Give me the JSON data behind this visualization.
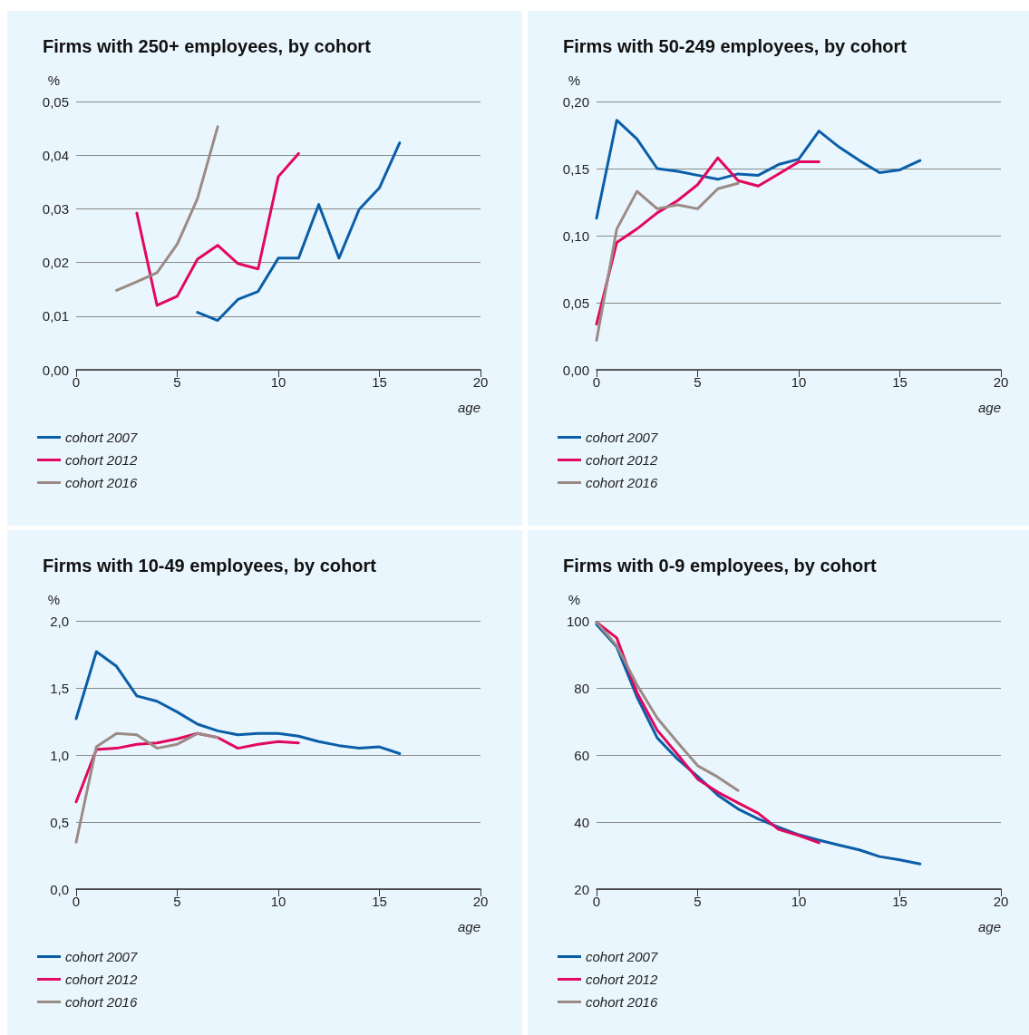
{
  "chart_data": [
    {
      "type": "line",
      "title": "Firms with 250+ employees, by cohort",
      "xlabel": "age",
      "ylabel": "%",
      "xlim": [
        0,
        20
      ],
      "xticks": [
        0,
        5,
        10,
        15,
        20
      ],
      "ylim": [
        0,
        0.05
      ],
      "yticks": [
        {
          "value": 0,
          "label": "0,00"
        },
        {
          "value": 0.01,
          "label": "0,01"
        },
        {
          "value": 0.02,
          "label": "0,02"
        },
        {
          "value": 0.03,
          "label": "0,03"
        },
        {
          "value": 0.04,
          "label": "0,04"
        },
        {
          "value": 0.05,
          "label": "0,05"
        }
      ],
      "grid": "y",
      "legend": "bottom left",
      "marker": "none",
      "line_style": "solid",
      "series": [
        {
          "name": "cohort 2007",
          "color": "#0a5ea8",
          "x": [
            6,
            7,
            8,
            9,
            10,
            11,
            12,
            13,
            14,
            15,
            16
          ],
          "values": [
            0.0107,
            0.0092,
            0.0131,
            0.0146,
            0.0208,
            0.0208,
            0.0308,
            0.0208,
            0.0299,
            0.0339,
            0.0423
          ]
        },
        {
          "name": "cohort 2012",
          "color": "#e2075f",
          "x": [
            3,
            4,
            5,
            6,
            7,
            8,
            9,
            10,
            11
          ],
          "values": [
            0.0292,
            0.012,
            0.0137,
            0.0206,
            0.0232,
            0.0198,
            0.0188,
            0.036,
            0.0403
          ]
        },
        {
          "name": "cohort 2016",
          "color": "#9b8b86",
          "x": [
            2,
            3,
            4,
            5,
            6,
            7
          ],
          "values": [
            0.0148,
            0.0164,
            0.0181,
            0.0234,
            0.0319,
            0.0453
          ]
        }
      ]
    },
    {
      "type": "line",
      "title": "Firms with 50-249 employees, by cohort",
      "xlabel": "age",
      "ylabel": "%",
      "xlim": [
        0,
        20
      ],
      "xticks": [
        0,
        5,
        10,
        15,
        20
      ],
      "ylim": [
        0,
        0.2
      ],
      "yticks": [
        {
          "value": 0,
          "label": "0,00"
        },
        {
          "value": 0.05,
          "label": "0,05"
        },
        {
          "value": 0.1,
          "label": "0,10"
        },
        {
          "value": 0.15,
          "label": "0,15"
        },
        {
          "value": 0.2,
          "label": "0,20"
        }
      ],
      "grid": "y",
      "legend": "bottom left",
      "marker": "none",
      "line_style": "solid",
      "series": [
        {
          "name": "cohort 2007",
          "color": "#0a5ea8",
          "x": [
            0,
            1,
            2,
            3,
            4,
            5,
            6,
            7,
            8,
            9,
            10,
            11,
            12,
            13,
            14,
            15,
            16
          ],
          "values": [
            0.113,
            0.186,
            0.172,
            0.15,
            0.148,
            0.145,
            0.142,
            0.146,
            0.145,
            0.153,
            0.157,
            0.178,
            0.166,
            0.156,
            0.147,
            0.149,
            0.156
          ]
        },
        {
          "name": "cohort 2012",
          "color": "#e2075f",
          "x": [
            0,
            1,
            2,
            3,
            4,
            5,
            6,
            7,
            8,
            9,
            10,
            11
          ],
          "values": [
            0.034,
            0.095,
            0.105,
            0.117,
            0.126,
            0.138,
            0.158,
            0.141,
            0.137,
            0.146,
            0.155,
            0.155
          ]
        },
        {
          "name": "cohort 2016",
          "color": "#9b8b86",
          "x": [
            0,
            1,
            2,
            3,
            4,
            5,
            6,
            7
          ],
          "values": [
            0.022,
            0.105,
            0.133,
            0.12,
            0.123,
            0.12,
            0.135,
            0.139
          ]
        }
      ]
    },
    {
      "type": "line",
      "title": "Firms with 10-49 employees, by cohort",
      "xlabel": "age",
      "ylabel": "%",
      "xlim": [
        0,
        20
      ],
      "xticks": [
        0,
        5,
        10,
        15,
        20
      ],
      "ylim": [
        0,
        2
      ],
      "yticks": [
        {
          "value": 0,
          "label": "0,0"
        },
        {
          "value": 0.5,
          "label": "0,5"
        },
        {
          "value": 1,
          "label": "1,0"
        },
        {
          "value": 1.5,
          "label": "1,5"
        },
        {
          "value": 2,
          "label": "2,0"
        }
      ],
      "grid": "y",
      "legend": "bottom left",
      "marker": "none",
      "line_style": "solid",
      "series": [
        {
          "name": "cohort 2007",
          "color": "#0a5ea8",
          "x": [
            0,
            1,
            2,
            3,
            4,
            5,
            6,
            7,
            8,
            9,
            10,
            11,
            12,
            13,
            14,
            15,
            16
          ],
          "values": [
            1.27,
            1.77,
            1.66,
            1.44,
            1.4,
            1.32,
            1.23,
            1.18,
            1.15,
            1.16,
            1.16,
            1.14,
            1.1,
            1.07,
            1.05,
            1.06,
            1.01
          ]
        },
        {
          "name": "cohort 2012",
          "color": "#e2075f",
          "x": [
            0,
            1,
            2,
            3,
            4,
            5,
            6,
            7,
            8,
            9,
            10,
            11
          ],
          "values": [
            0.65,
            1.04,
            1.05,
            1.08,
            1.09,
            1.12,
            1.16,
            1.13,
            1.05,
            1.08,
            1.1,
            1.09
          ]
        },
        {
          "name": "cohort 2016",
          "color": "#9b8b86",
          "x": [
            0,
            1,
            2,
            3,
            4,
            5,
            6,
            7
          ],
          "values": [
            0.35,
            1.06,
            1.16,
            1.15,
            1.05,
            1.08,
            1.16,
            1.13
          ]
        }
      ]
    },
    {
      "type": "line",
      "title": "Firms with 0-9 employees, by cohort",
      "xlabel": "age",
      "ylabel": "%",
      "xlim": [
        0,
        20
      ],
      "xticks": [
        0,
        5,
        10,
        15,
        20
      ],
      "ylim": [
        20,
        100
      ],
      "yticks": [
        20,
        40,
        60,
        80,
        100
      ],
      "grid": "y",
      "legend": "bottom left",
      "marker": "none",
      "line_style": "solid",
      "series": [
        {
          "name": "cohort 2007",
          "color": "#0a5ea8",
          "x": [
            0,
            1,
            2,
            3,
            4,
            5,
            6,
            7,
            8,
            9,
            10,
            11,
            12,
            13,
            14,
            15,
            16
          ],
          "values": [
            98.9,
            92.2,
            77.3,
            65.1,
            58.8,
            53.6,
            48,
            43.9,
            40.9,
            38.5,
            36.2,
            34.6,
            33.1,
            31.7,
            29.7,
            28.7,
            27.5
          ]
        },
        {
          "name": "cohort 2012",
          "color": "#e2075f",
          "x": [
            0,
            1,
            2,
            3,
            4,
            5,
            6,
            7,
            8,
            9,
            10,
            11
          ],
          "values": [
            99.6,
            94.9,
            78.6,
            67.4,
            60.2,
            52.8,
            48.9,
            45.7,
            42.6,
            37.8,
            36,
            33.8
          ]
        },
        {
          "name": "cohort 2016",
          "color": "#9b8b86",
          "x": [
            0,
            1,
            2,
            3,
            4,
            5,
            6,
            7
          ],
          "values": [
            99.6,
            92.6,
            80.9,
            71,
            63.8,
            56.8,
            53.4,
            49.4
          ]
        }
      ]
    }
  ]
}
